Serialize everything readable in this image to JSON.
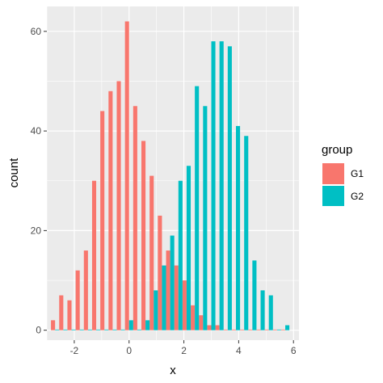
{
  "chart_data": {
    "type": "bar",
    "title": "",
    "xlabel": "x",
    "ylabel": "count",
    "xlim": [
      -3.0,
      6.2
    ],
    "ylim": [
      -2.0,
      65.0
    ],
    "grid": true,
    "legend_position": "right",
    "legend_title": "group",
    "x_ticks": [
      -2,
      0,
      2,
      4,
      6
    ],
    "y_ticks": [
      0,
      20,
      40,
      60
    ],
    "bin_width": 0.3,
    "position": "dodge",
    "series": [
      {
        "name": "G1",
        "color": "#F8766D",
        "x": [
          -2.7,
          -2.4,
          -2.1,
          -1.8,
          -1.5,
          -1.2,
          -0.9,
          -0.6,
          -0.3,
          0.0,
          0.3,
          0.6,
          0.9,
          1.2,
          1.5,
          1.8,
          2.1,
          2.4,
          2.7,
          3.0,
          3.3,
          3.6,
          3.9,
          4.2,
          4.5,
          4.8,
          5.1,
          5.4,
          5.7
        ],
        "values": [
          2,
          7,
          6,
          12,
          16,
          30,
          44,
          48,
          50,
          62,
          45,
          38,
          31,
          23,
          16,
          13,
          10,
          5,
          3,
          1,
          1,
          0,
          0,
          0,
          0,
          0,
          0,
          0,
          0
        ]
      },
      {
        "name": "G2",
        "color": "#00BFC4",
        "x": [
          -2.7,
          -2.4,
          -2.1,
          -1.8,
          -1.5,
          -1.2,
          -0.9,
          -0.6,
          -0.3,
          0.0,
          0.3,
          0.6,
          0.9,
          1.2,
          1.5,
          1.8,
          2.1,
          2.4,
          2.7,
          3.0,
          3.3,
          3.6,
          3.9,
          4.2,
          4.5,
          4.8,
          5.1,
          5.4,
          5.7
        ],
        "values": [
          0,
          0,
          0,
          0,
          0,
          0,
          0,
          0,
          0,
          2,
          0,
          2,
          8,
          13,
          19,
          30,
          33,
          49,
          45,
          58,
          58,
          57,
          41,
          39,
          14,
          8,
          7,
          0,
          1
        ]
      }
    ]
  }
}
